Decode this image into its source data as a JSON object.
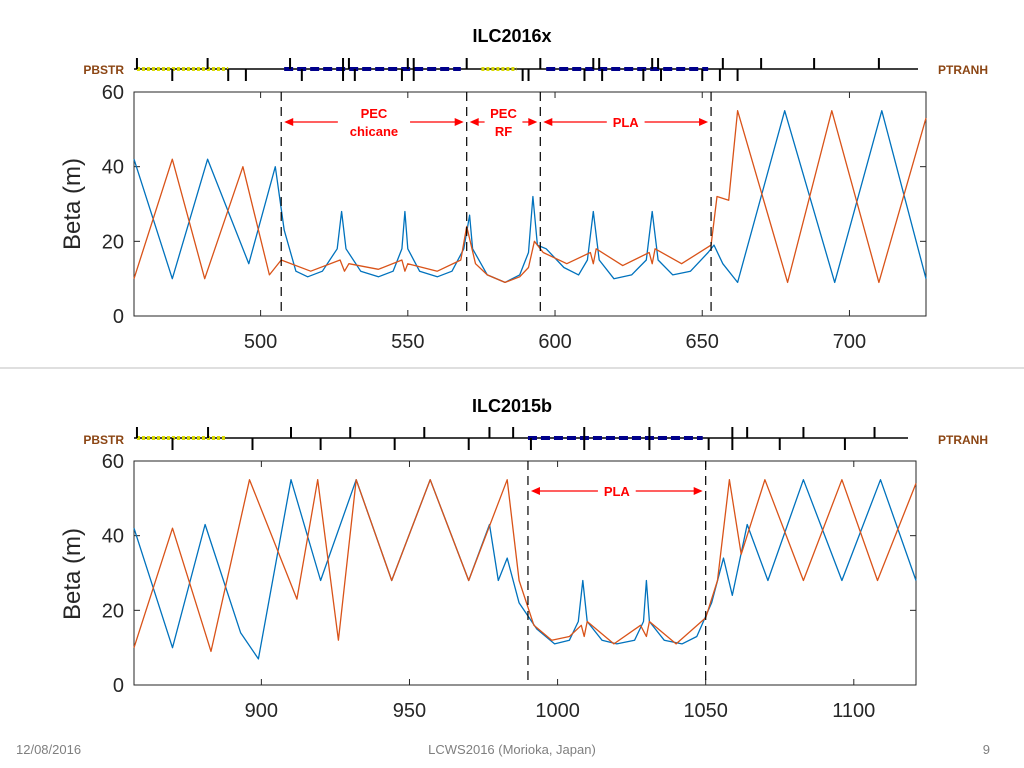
{
  "colors": {
    "beta_x": "#0072bd",
    "beta_y": "#d95319",
    "element_label": "#8b4513",
    "region": "#ff0000",
    "pla_magnet": "#00008b",
    "rf_cavity": "#d9d900",
    "divider": "#bfbfbf"
  },
  "footer": {
    "date": "12/08/2016",
    "event": "LCWS2016 (Morioka, Japan)",
    "page": "9"
  },
  "chart_data": [
    {
      "type": "line",
      "title": "ILC2016x",
      "ylabel": "Beta (m)",
      "xlim": [
        457,
        726
      ],
      "ylim": [
        0,
        60
      ],
      "xticks": [
        500,
        550,
        600,
        650,
        700
      ],
      "yticks": [
        0,
        20,
        40,
        60
      ],
      "beamline_start": "PBSTR",
      "beamline_end": "PTRANH",
      "region_boundaries": [
        507,
        570,
        595,
        653
      ],
      "regions": [
        {
          "name": "PEC chicane",
          "lines": [
            "PEC",
            "chicane"
          ],
          "from": 507,
          "to": 570
        },
        {
          "name": "PEC RF",
          "lines": [
            "PEC",
            "RF"
          ],
          "from": 570,
          "to": 595
        },
        {
          "name": "PLA",
          "lines": [
            "PLA"
          ],
          "from": 595,
          "to": 653
        }
      ],
      "lattice": {
        "rf": [
          [
            458,
            489
          ],
          [
            575,
            587
          ]
        ],
        "pla": [
          [
            508,
            568
          ],
          [
            597,
            652
          ]
        ],
        "quads_up": [
          458,
          482,
          510,
          528,
          530,
          550,
          552,
          570,
          595,
          613,
          615,
          633,
          635,
          657,
          670,
          688,
          710
        ],
        "quads_down": [
          470,
          489,
          495,
          514,
          528,
          532,
          548,
          552,
          589,
          591,
          610,
          616,
          630,
          636,
          650,
          656,
          662
        ]
      },
      "series": [
        {
          "values": [
            [
              457,
              42
            ],
            [
              470,
              10
            ],
            [
              482,
              42
            ],
            [
              496,
              14
            ],
            [
              505,
              40
            ],
            [
              508,
              23
            ],
            [
              512,
              12
            ],
            [
              516,
              10.5
            ],
            [
              521,
              12
            ],
            [
              526,
              18
            ],
            [
              527.5,
              28
            ],
            [
              529,
              18
            ],
            [
              534,
              12
            ],
            [
              540,
              10.5
            ],
            [
              545,
              12
            ],
            [
              548,
              18
            ],
            [
              549,
              28
            ],
            [
              550,
              18
            ],
            [
              554,
              12
            ],
            [
              560,
              10.5
            ],
            [
              565,
              12
            ],
            [
              569,
              18
            ],
            [
              571,
              27
            ],
            [
              572,
              18
            ],
            [
              577,
              11
            ],
            [
              583,
              9
            ],
            [
              588,
              11
            ],
            [
              591,
              17
            ],
            [
              592.5,
              32
            ],
            [
              594,
              19
            ],
            [
              597,
              18
            ],
            [
              603,
              13
            ],
            [
              608,
              11
            ],
            [
              611,
              15
            ],
            [
              613,
              28
            ],
            [
              615,
              15
            ],
            [
              620,
              10
            ],
            [
              626,
              11
            ],
            [
              631,
              15
            ],
            [
              633,
              28
            ],
            [
              635,
              15
            ],
            [
              640,
              11
            ],
            [
              646,
              12
            ],
            [
              652,
              17
            ],
            [
              654,
              19
            ],
            [
              657,
              14
            ],
            [
              662,
              9
            ],
            [
              678,
              55
            ],
            [
              695,
              9
            ],
            [
              711,
              55
            ],
            [
              726,
              10
            ]
          ]
        },
        {
          "values": [
            [
              457,
              10
            ],
            [
              470,
              42
            ],
            [
              481,
              10
            ],
            [
              494,
              40
            ],
            [
              503,
              11
            ],
            [
              507,
              15
            ],
            [
              517,
              12
            ],
            [
              527,
              15
            ],
            [
              528.5,
              12
            ],
            [
              530,
              14
            ],
            [
              540,
              12.5
            ],
            [
              548,
              15
            ],
            [
              549,
              12
            ],
            [
              550,
              14
            ],
            [
              560,
              12
            ],
            [
              568,
              15
            ],
            [
              570,
              24
            ],
            [
              573,
              14
            ],
            [
              577,
              11
            ],
            [
              583,
              9
            ],
            [
              588,
              10.5
            ],
            [
              591,
              13
            ],
            [
              593,
              20
            ],
            [
              596,
              17
            ],
            [
              604,
              14
            ],
            [
              612,
              17
            ],
            [
              613,
              14
            ],
            [
              614,
              18
            ],
            [
              623,
              13.5
            ],
            [
              632,
              17
            ],
            [
              633,
              14
            ],
            [
              634,
              18
            ],
            [
              643,
              14
            ],
            [
              653,
              19
            ],
            [
              655,
              32
            ],
            [
              659,
              31
            ],
            [
              662,
              55
            ],
            [
              679,
              9
            ],
            [
              694,
              55
            ],
            [
              710,
              9
            ],
            [
              726,
              53
            ]
          ]
        }
      ]
    },
    {
      "type": "line",
      "title": "ILC2015b",
      "ylabel": "Beta (m)",
      "xlim": [
        857,
        1121
      ],
      "ylim": [
        0,
        60
      ],
      "xticks": [
        900,
        950,
        1000,
        1050,
        1100
      ],
      "yticks": [
        0,
        20,
        40,
        60
      ],
      "beamline_start": "PBSTR",
      "beamline_end": "PTRANH",
      "region_boundaries": [
        990,
        1050
      ],
      "regions": [
        {
          "name": "PLA",
          "lines": [
            "PLA"
          ],
          "from": 990,
          "to": 1050
        }
      ],
      "lattice": {
        "rf": [
          [
            858,
            888
          ]
        ],
        "pla": [
          [
            990,
            1049
          ]
        ],
        "quads_up": [
          858,
          882,
          910,
          930,
          955,
          977,
          985,
          1009,
          1031,
          1059,
          1064,
          1083,
          1107
        ],
        "quads_down": [
          870,
          897,
          920,
          945,
          970,
          991,
          1009,
          1031,
          1051,
          1059,
          1075,
          1097
        ]
      },
      "series": [
        {
          "values": [
            [
              857,
              42
            ],
            [
              870,
              10
            ],
            [
              881,
              43
            ],
            [
              893,
              14
            ],
            [
              899,
              7
            ],
            [
              910,
              55
            ],
            [
              920,
              28
            ],
            [
              932,
              55
            ],
            [
              944,
              28
            ],
            [
              957,
              55
            ],
            [
              970,
              28
            ],
            [
              977,
              43
            ],
            [
              980,
              28
            ],
            [
              983,
              34
            ],
            [
              987,
              22
            ],
            [
              993,
              15
            ],
            [
              999,
              11
            ],
            [
              1004,
              12
            ],
            [
              1007,
              17
            ],
            [
              1008.5,
              28
            ],
            [
              1010,
              17
            ],
            [
              1015,
              12
            ],
            [
              1020,
              11
            ],
            [
              1026,
              12
            ],
            [
              1029,
              17
            ],
            [
              1030,
              28
            ],
            [
              1031,
              17
            ],
            [
              1036,
              12
            ],
            [
              1042,
              11
            ],
            [
              1047,
              13
            ],
            [
              1052,
              22
            ],
            [
              1056,
              34
            ],
            [
              1059,
              24
            ],
            [
              1064,
              43
            ],
            [
              1071,
              28
            ],
            [
              1083,
              55
            ],
            [
              1096,
              28
            ],
            [
              1109,
              55
            ],
            [
              1121,
              28
            ]
          ]
        },
        {
          "values": [
            [
              857,
              10
            ],
            [
              870,
              42
            ],
            [
              883,
              9
            ],
            [
              896,
              55
            ],
            [
              912,
              23
            ],
            [
              919,
              55
            ],
            [
              926,
              12
            ],
            [
              932,
              55
            ],
            [
              944,
              28
            ],
            [
              957,
              55
            ],
            [
              970,
              28
            ],
            [
              983,
              55
            ],
            [
              987,
              28
            ],
            [
              992,
              16
            ],
            [
              998,
              12
            ],
            [
              1004,
              13
            ],
            [
              1008,
              16
            ],
            [
              1009,
              13
            ],
            [
              1010,
              17
            ],
            [
              1019,
              11
            ],
            [
              1028,
              16
            ],
            [
              1030,
              13
            ],
            [
              1031,
              17
            ],
            [
              1040,
              11
            ],
            [
              1050,
              18
            ],
            [
              1054,
              28
            ],
            [
              1058,
              55
            ],
            [
              1062,
              35
            ],
            [
              1070,
              55
            ],
            [
              1083,
              28
            ],
            [
              1096,
              55
            ],
            [
              1108,
              28
            ],
            [
              1121,
              54
            ]
          ]
        }
      ]
    }
  ]
}
